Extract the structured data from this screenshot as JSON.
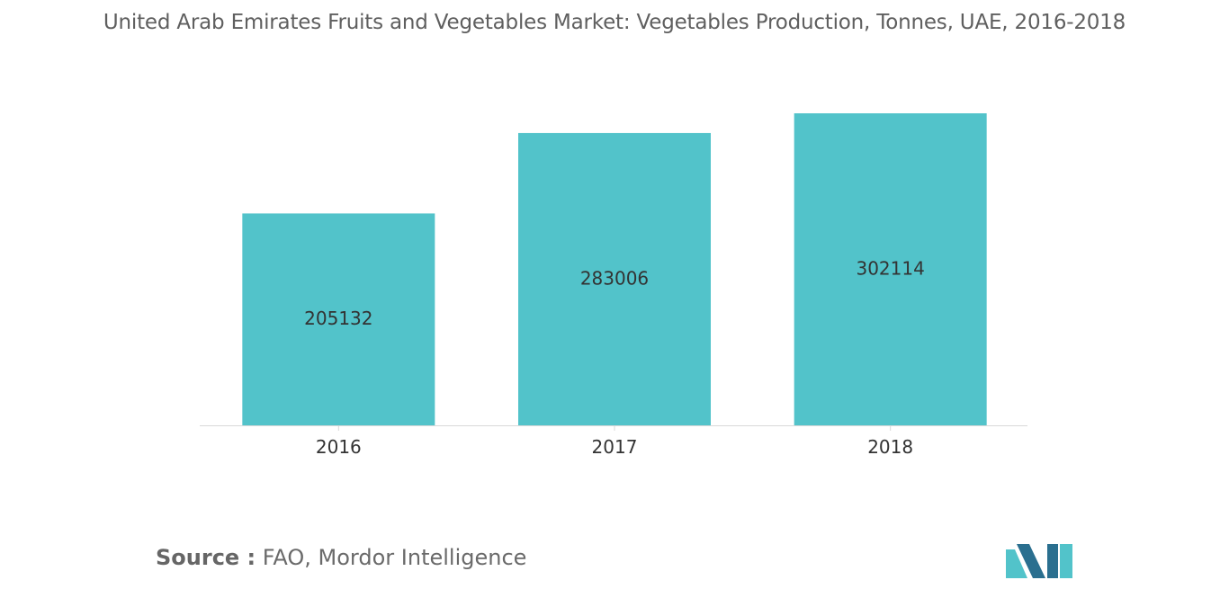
{
  "title": "United Arab Emirates Fruits and Vegetables Market: Vegetables Production, Tonnes, UAE, 2016-2018",
  "source": {
    "label": "Source :",
    "text": "FAO, Mordor Intelligence"
  },
  "colors": {
    "bar": "#52c3ca",
    "axis": "#d9d9d9",
    "tick_text": "#333333",
    "logo_dark": "#2a6f8f",
    "logo_light": "#52c3ca"
  },
  "chart_data": {
    "type": "bar",
    "categories": [
      "2016",
      "2017",
      "2018"
    ],
    "values": [
      205132,
      283006,
      302114
    ],
    "data_labels": [
      "205132",
      "283006",
      "302114"
    ],
    "title": "United Arab Emirates Fruits and Vegetables Market: Vegetables Production, Tonnes, UAE, 2016-2018",
    "xlabel": "",
    "ylabel": "",
    "ylim": [
      0,
      302114
    ],
    "grid": false,
    "legend": "none"
  }
}
